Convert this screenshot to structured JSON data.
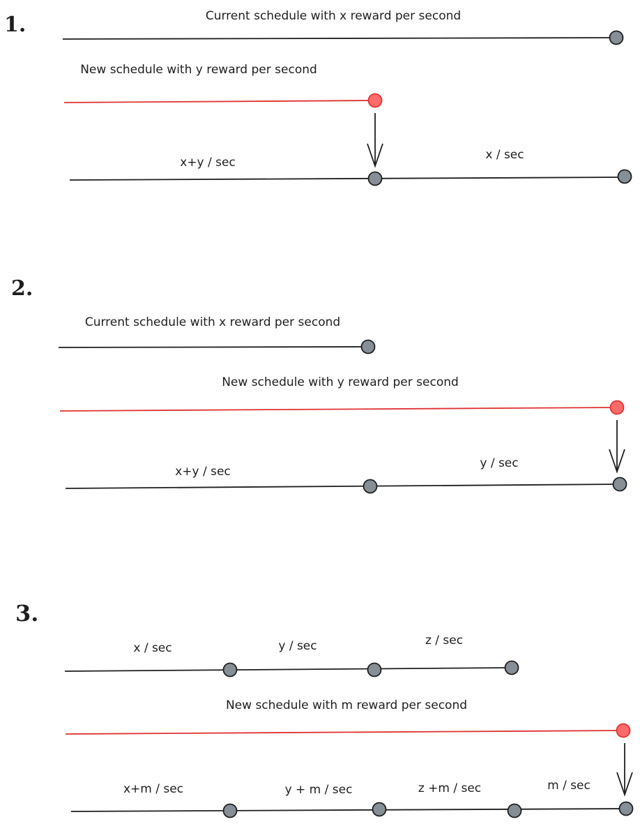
{
  "colors": {
    "black_line": "#1e1e1e",
    "red_line": "#e03131",
    "node_gray": "#868e96",
    "node_red": "#ff6b6b",
    "stroke": "#1e1e1e"
  },
  "sections": [
    {
      "number": "1.",
      "current_label": "Current schedule with x reward per second",
      "new_label": "New schedule with y reward per second",
      "result_labels": [
        "x+y / sec",
        "x / sec"
      ]
    },
    {
      "number": "2.",
      "current_label": "Current schedule with x reward per second",
      "new_label": "New schedule with y reward per second",
      "result_labels": [
        "x+y / sec",
        "y / sec"
      ]
    },
    {
      "number": "3.",
      "current_labels": [
        "x / sec",
        "y / sec",
        "z / sec"
      ],
      "new_label": "New schedule with m reward per second",
      "result_labels": [
        "x+m / sec",
        "y + m / sec",
        "z +m / sec",
        "m / sec"
      ]
    }
  ]
}
